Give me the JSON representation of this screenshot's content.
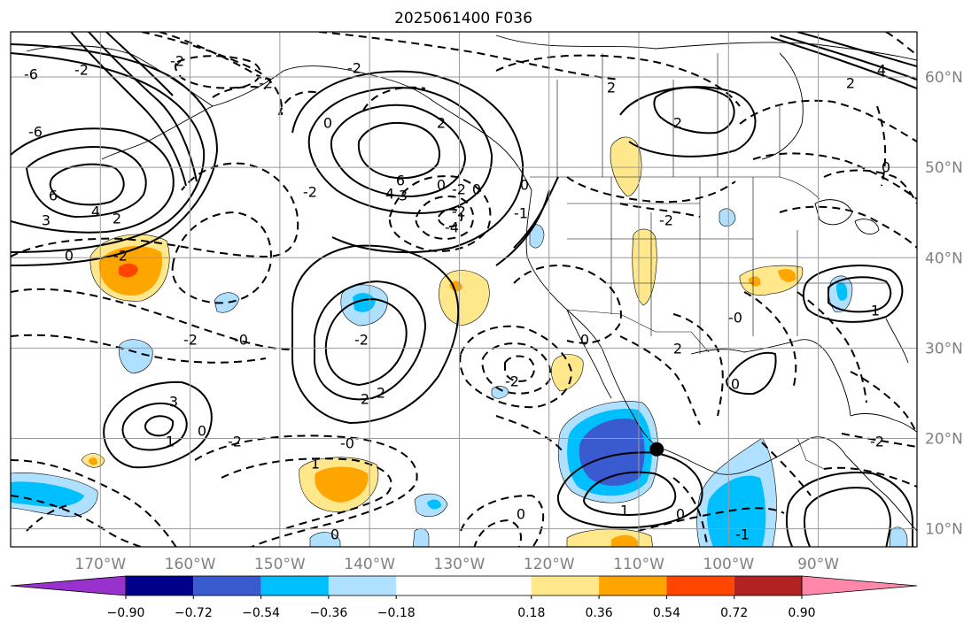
{
  "title": "2025061400 F036",
  "map": {
    "lat_labels": [
      "60°N",
      "50°N",
      "40°N",
      "30°N",
      "20°N",
      "10°N"
    ],
    "lon_labels": [
      "170°W",
      "160°W",
      "150°W",
      "140°W",
      "130°W",
      "120°W",
      "110°W",
      "100°W",
      "90°W"
    ],
    "grid": true,
    "contour_labels": [
      "-6",
      "-2",
      "-2",
      "-2",
      "-2",
      "6",
      "4",
      "3",
      "2",
      "-2",
      "0",
      "-2",
      "-4",
      "6",
      "4",
      "3",
      "0",
      "-2",
      "2",
      "-2",
      "0",
      "-2",
      "-0",
      "-2",
      "2",
      "0",
      "-1",
      "0",
      "2",
      "2",
      "-2",
      "3",
      "1",
      "0",
      "-2",
      "1",
      "2",
      "-0",
      "0",
      "0",
      "-2",
      "0",
      "1",
      "-0",
      "-1",
      "2",
      "1",
      "0",
      "0",
      "-6",
      "4",
      "2",
      "0",
      "-2"
    ],
    "marker": {
      "label": "point",
      "lon": -108,
      "lat": 18.8
    }
  },
  "colorbar": {
    "tick_labels": [
      "−0.90",
      "−0.72",
      "−0.54",
      "−0.36",
      "−0.18",
      "0.18",
      "0.36",
      "0.54",
      "0.72",
      "0.90"
    ],
    "levels": [
      -0.9,
      -0.72,
      -0.54,
      -0.36,
      -0.18,
      0.18,
      0.36,
      0.54,
      0.72,
      0.9
    ],
    "colors": [
      "#9932cc",
      "#00008b",
      "#3a5bd0",
      "#00bfff",
      "#b0e0ff",
      "#ffffff",
      "#ffe88c",
      "#ffa500",
      "#ff4500",
      "#b22222",
      "#ff88aa"
    ],
    "extend": "both"
  }
}
